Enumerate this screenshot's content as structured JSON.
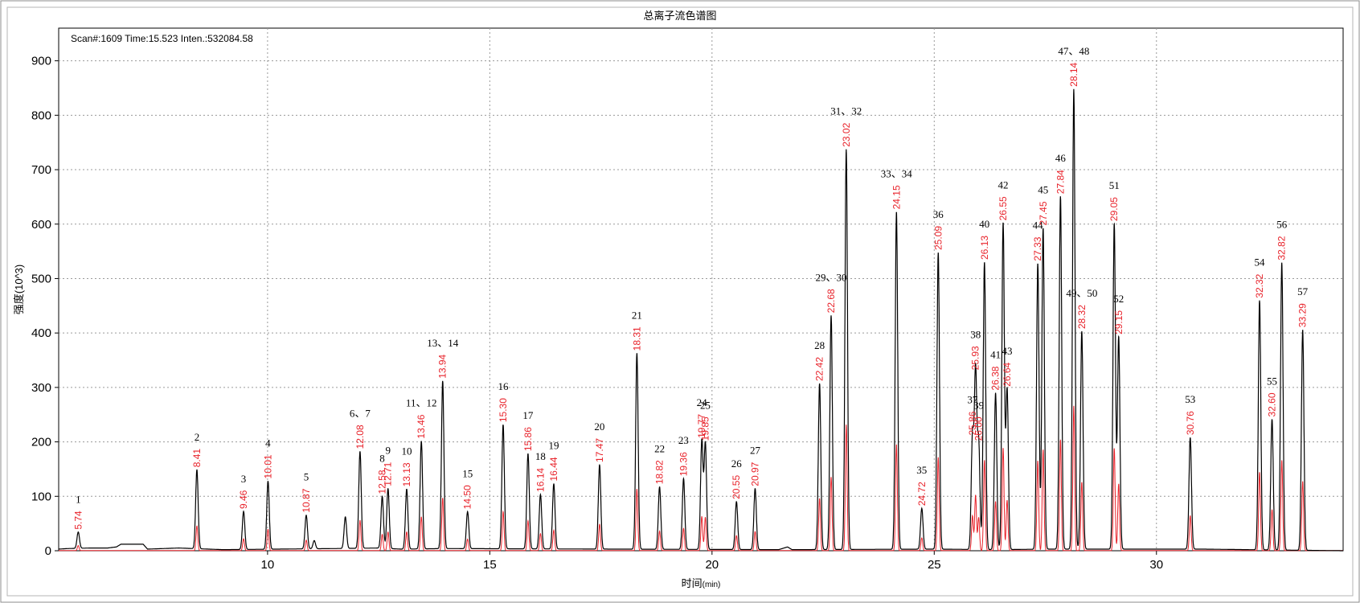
{
  "window": {
    "title": "总离子流色谱图"
  },
  "scan_info": "Scan#:1609  Time:15.523  Inten.:532084.58",
  "chart_data": {
    "type": "line",
    "title": "总离子流色谱图",
    "xlabel": "时间",
    "xlabel_unit": "(min)",
    "ylabel": "强度(10^3)",
    "xlim": [
      5.3,
      34.2
    ],
    "ylim": [
      0,
      960
    ],
    "x_ticks": [
      10,
      15,
      20,
      25,
      30
    ],
    "y_ticks": [
      0,
      100,
      200,
      300,
      400,
      500,
      600,
      700,
      800,
      900
    ],
    "grid": true,
    "baseline": [
      [
        5.3,
        3
      ],
      [
        5.5,
        4
      ],
      [
        6.0,
        5
      ],
      [
        6.4,
        5
      ],
      [
        6.6,
        7
      ],
      [
        6.7,
        12
      ],
      [
        7.2,
        12
      ],
      [
        7.3,
        3
      ],
      [
        8.0,
        5
      ],
      [
        9.0,
        2
      ],
      [
        11.5,
        4
      ],
      [
        12.5,
        5
      ],
      [
        13.0,
        3
      ],
      [
        14.0,
        4
      ],
      [
        21.5,
        2
      ],
      [
        21.7,
        7
      ],
      [
        21.8,
        2
      ],
      [
        25.0,
        3
      ],
      [
        26.5,
        2
      ],
      [
        27.5,
        3
      ],
      [
        31.0,
        3
      ],
      [
        34.2,
        0
      ]
    ],
    "peaks": [
      {
        "rt": 5.74,
        "height": 30,
        "label": "1",
        "rt_label": "5.74"
      },
      {
        "rt": 8.41,
        "height": 145,
        "label": "2",
        "rt_label": "8.41"
      },
      {
        "rt": 9.46,
        "height": 70,
        "label": "3",
        "rt_label": "9.46"
      },
      {
        "rt": 10.01,
        "height": 125,
        "label": "4",
        "rt_label": "10.01"
      },
      {
        "rt": 10.87,
        "height": 62,
        "label": "5",
        "rt_label": "10.87"
      },
      {
        "rt": 11.05,
        "height": 15,
        "label": "",
        "rt_label": ""
      },
      {
        "rt": 11.75,
        "height": 58,
        "label": "",
        "rt_label": ""
      },
      {
        "rt": 12.08,
        "height": 178,
        "label": "6、7",
        "rt_label": "12.08"
      },
      {
        "rt": 12.58,
        "height": 95,
        "label": "8",
        "rt_label": "12.58"
      },
      {
        "rt": 12.71,
        "height": 110,
        "label": "9",
        "rt_label": "12.71"
      },
      {
        "rt": 13.13,
        "height": 110,
        "label": "10",
        "rt_label": "13.13"
      },
      {
        "rt": 13.46,
        "height": 198,
        "label": "11、12",
        "rt_label": "13.46"
      },
      {
        "rt": 13.94,
        "height": 308,
        "label": "13、14",
        "rt_label": "13.94"
      },
      {
        "rt": 14.5,
        "height": 68,
        "label": "15",
        "rt_label": "14.50"
      },
      {
        "rt": 15.3,
        "height": 228,
        "label": "16",
        "rt_label": "15.30"
      },
      {
        "rt": 15.86,
        "height": 175,
        "label": "17",
        "rt_label": "15.86"
      },
      {
        "rt": 16.14,
        "height": 100,
        "label": "18",
        "rt_label": "16.14"
      },
      {
        "rt": 16.44,
        "height": 120,
        "label": "19",
        "rt_label": "16.44"
      },
      {
        "rt": 17.47,
        "height": 155,
        "label": "20",
        "rt_label": "17.47"
      },
      {
        "rt": 18.31,
        "height": 360,
        "label": "21",
        "rt_label": "18.31"
      },
      {
        "rt": 18.82,
        "height": 115,
        "label": "22",
        "rt_label": "18.82"
      },
      {
        "rt": 19.36,
        "height": 130,
        "label": "23",
        "rt_label": "19.36"
      },
      {
        "rt": 19.77,
        "height": 200,
        "label": "24",
        "rt_label": "19.77"
      },
      {
        "rt": 19.85,
        "height": 195,
        "label": "25",
        "rt_label": "19.85"
      },
      {
        "rt": 20.55,
        "height": 88,
        "label": "26",
        "rt_label": "20.55"
      },
      {
        "rt": 20.97,
        "height": 112,
        "label": "27",
        "rt_label": "20.97"
      },
      {
        "rt": 22.42,
        "height": 305,
        "label": "28",
        "rt_label": "22.42"
      },
      {
        "rt": 22.68,
        "height": 430,
        "label": "29、30",
        "rt_label": "22.68"
      },
      {
        "rt": 23.02,
        "height": 735,
        "label": "31、32",
        "rt_label": "23.02"
      },
      {
        "rt": 24.15,
        "height": 620,
        "label": "33、34",
        "rt_label": "24.15"
      },
      {
        "rt": 24.72,
        "height": 75,
        "label": "35",
        "rt_label": "24.72"
      },
      {
        "rt": 25.09,
        "height": 545,
        "label": "36",
        "rt_label": "25.09"
      },
      {
        "rt": 25.86,
        "height": 205,
        "label": "37",
        "rt_label": "25.86"
      },
      {
        "rt": 25.93,
        "height": 325,
        "label": "38",
        "rt_label": "25.93"
      },
      {
        "rt": 26.0,
        "height": 195,
        "label": "39",
        "rt_label": "26.00"
      },
      {
        "rt": 26.13,
        "height": 528,
        "label": "40",
        "rt_label": "26.13"
      },
      {
        "rt": 26.38,
        "height": 288,
        "label": "41",
        "rt_label": "26.38"
      },
      {
        "rt": 26.55,
        "height": 600,
        "label": "42",
        "rt_label": "26.55"
      },
      {
        "rt": 26.64,
        "height": 295,
        "label": "43",
        "rt_label": "26.64"
      },
      {
        "rt": 27.33,
        "height": 525,
        "label": "44",
        "rt_label": "27.33"
      },
      {
        "rt": 27.45,
        "height": 590,
        "label": "45",
        "rt_label": "27.45"
      },
      {
        "rt": 27.84,
        "height": 648,
        "label": "46",
        "rt_label": "27.84"
      },
      {
        "rt": 28.14,
        "height": 845,
        "label": "47、48",
        "rt_label": "28.14"
      },
      {
        "rt": 28.32,
        "height": 400,
        "label": "49、50",
        "rt_label": "28.32"
      },
      {
        "rt": 29.05,
        "height": 598,
        "label": "51",
        "rt_label": "29.05"
      },
      {
        "rt": 29.15,
        "height": 390,
        "label": "52",
        "rt_label": "29.15"
      },
      {
        "rt": 30.76,
        "height": 205,
        "label": "53",
        "rt_label": "30.76"
      },
      {
        "rt": 32.32,
        "height": 458,
        "label": "54",
        "rt_label": "32.32"
      },
      {
        "rt": 32.6,
        "height": 240,
        "label": "55",
        "rt_label": "32.60"
      },
      {
        "rt": 32.82,
        "height": 528,
        "label": "56",
        "rt_label": "32.82"
      },
      {
        "rt": 33.29,
        "height": 405,
        "label": "57",
        "rt_label": "33.29"
      }
    ]
  }
}
